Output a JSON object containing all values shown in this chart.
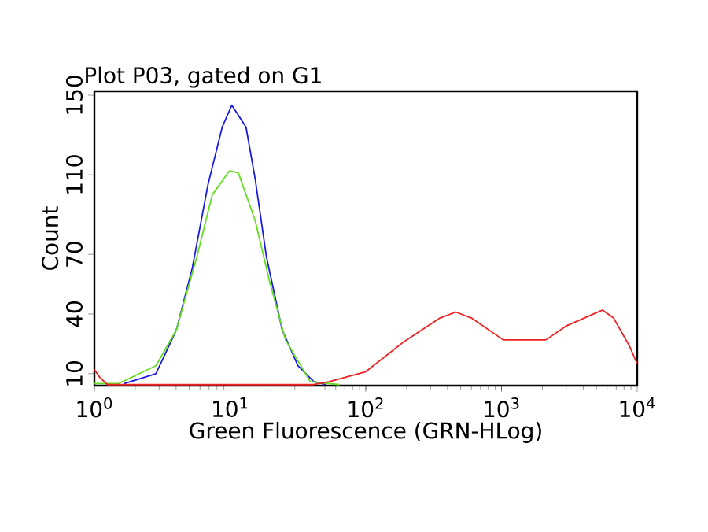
{
  "chart_data": {
    "type": "line",
    "title": "Plot P03, gated on G1",
    "xlabel": "Green Fluorescence (GRN-HLog)",
    "ylabel": "Count",
    "log": "x",
    "xlim": [
      1,
      10000
    ],
    "ylim": [
      4,
      152
    ],
    "xticks": [
      {
        "value": 1,
        "label": "10$^{0}$"
      },
      {
        "value": 10,
        "label": "10$^{1}$"
      },
      {
        "value": 100,
        "label": "10$^{2}$"
      },
      {
        "value": 1000,
        "label": "10$^{3}$"
      },
      {
        "value": 10000,
        "label": "10$^{4}$"
      }
    ],
    "yticks": [
      10,
      40,
      70,
      110,
      150
    ],
    "marker": "none",
    "grid": false,
    "series": [
      {
        "color": "#1c1ce0",
        "x": [
          1.66,
          2.84,
          4.02,
          5.26,
          6.87,
          8.75,
          10.3,
          13.1,
          15.3,
          18.5,
          24.2,
          31.6,
          41.3,
          51
        ],
        "values": [
          5,
          10,
          32,
          63,
          105,
          134,
          145,
          134,
          108,
          69,
          32,
          14,
          6,
          4.5
        ]
      },
      {
        "color": "#66dd22",
        "x": [
          1,
          1.5,
          2.84,
          4.02,
          5.7,
          7.4,
          9.9,
          11.5,
          15.3,
          19.6,
          25.6,
          39,
          64
        ],
        "values": [
          5,
          5,
          14,
          32,
          69,
          100,
          112,
          111,
          87,
          56,
          27,
          6,
          4.5
        ]
      },
      {
        "color": "#ee2222",
        "x": [
          1,
          1.1,
          1.25,
          12.4,
          41.3,
          54,
          100,
          190,
          352,
          460,
          601,
          1030,
          2120,
          3000,
          5550,
          6700,
          8750,
          10000
        ],
        "values": [
          12,
          8,
          4.5,
          4.5,
          4.5,
          6,
          11,
          26,
          38,
          41,
          38,
          27,
          27,
          34,
          42,
          38,
          24,
          15
        ]
      }
    ]
  }
}
